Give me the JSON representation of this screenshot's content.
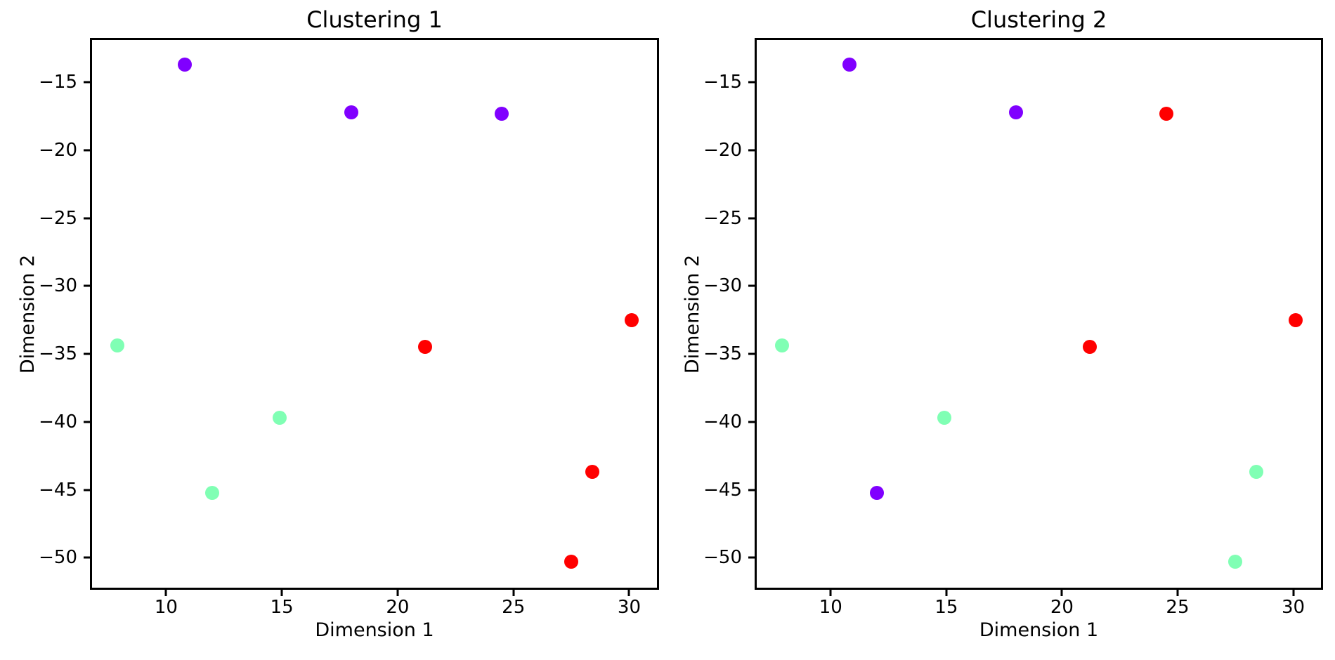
{
  "page": {
    "background": "#ffffff",
    "text_color": "#000000"
  },
  "cluster_colors": {
    "purple": "#8000ff",
    "green": "#80ffb4",
    "red": "#ff0000"
  },
  "chart_data": [
    {
      "type": "scatter",
      "title": "Clustering 1",
      "xlabel": "Dimension 1",
      "ylabel": "Dimension 2",
      "xlim": [
        6.8,
        31.2
      ],
      "ylim": [
        -52.2,
        -11.9
      ],
      "xticks": [
        10,
        15,
        20,
        25,
        30
      ],
      "yticks": [
        -15,
        -20,
        -25,
        -30,
        -35,
        -40,
        -45,
        -50
      ],
      "grid": false,
      "legend": "none",
      "series": [
        {
          "cluster": "purple",
          "points": [
            {
              "x": 10.8,
              "y": -13.7
            },
            {
              "x": 18.0,
              "y": -17.2
            },
            {
              "x": 24.5,
              "y": -17.3
            }
          ]
        },
        {
          "cluster": "green",
          "points": [
            {
              "x": 7.9,
              "y": -34.4
            },
            {
              "x": 14.9,
              "y": -39.7
            },
            {
              "x": 12.0,
              "y": -45.2
            }
          ]
        },
        {
          "cluster": "red",
          "points": [
            {
              "x": 21.2,
              "y": -34.5
            },
            {
              "x": 30.1,
              "y": -32.5
            },
            {
              "x": 28.4,
              "y": -43.7
            },
            {
              "x": 27.5,
              "y": -50.3
            }
          ]
        }
      ]
    },
    {
      "type": "scatter",
      "title": "Clustering 2",
      "xlabel": "Dimension 1",
      "ylabel": "Dimension 2",
      "xlim": [
        6.8,
        31.2
      ],
      "ylim": [
        -52.2,
        -11.9
      ],
      "xticks": [
        10,
        15,
        20,
        25,
        30
      ],
      "yticks": [
        -15,
        -20,
        -25,
        -30,
        -35,
        -40,
        -45,
        -50
      ],
      "grid": false,
      "legend": "none",
      "series": [
        {
          "cluster": "purple",
          "points": [
            {
              "x": 10.8,
              "y": -13.7
            },
            {
              "x": 18.0,
              "y": -17.2
            },
            {
              "x": 12.0,
              "y": -45.2
            }
          ]
        },
        {
          "cluster": "green",
          "points": [
            {
              "x": 7.9,
              "y": -34.4
            },
            {
              "x": 14.9,
              "y": -39.7
            },
            {
              "x": 28.4,
              "y": -43.7
            },
            {
              "x": 27.5,
              "y": -50.3
            }
          ]
        },
        {
          "cluster": "red",
          "points": [
            {
              "x": 24.5,
              "y": -17.3
            },
            {
              "x": 21.2,
              "y": -34.5
            },
            {
              "x": 30.1,
              "y": -32.5
            }
          ]
        }
      ]
    }
  ]
}
